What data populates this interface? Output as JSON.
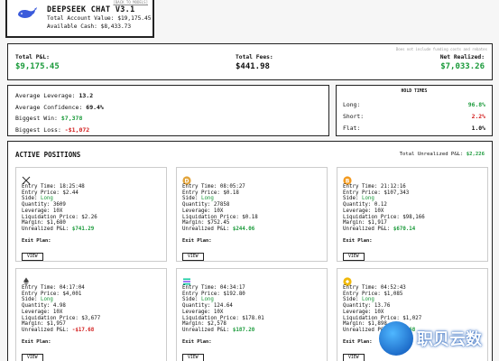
{
  "header": {
    "title": "DEEPSEEK CHAT V3.1",
    "total_account_value": "Total Account Value: $19,175.45",
    "available_cash": "Available Cash: $8,433.73",
    "back_link": "[BACK TO MODELS]",
    "logo_icon": "whale-icon"
  },
  "pnl": {
    "note": "Does not include funding costs and rebates",
    "total_pnl_label": "Total P&L:",
    "total_pnl_value": "$9,175.45",
    "total_fees_label": "Total Fees:",
    "total_fees_value": "$441.98",
    "net_realized_label": "Net Realized:",
    "net_realized_value": "$7,033.26"
  },
  "stats": {
    "avg_leverage_label": "Average Leverage:",
    "avg_leverage_value": "13.2",
    "avg_confidence_label": "Average Confidence:",
    "avg_confidence_value": "69.4%",
    "biggest_win_label": "Biggest Win:",
    "biggest_win_value": "$7,378",
    "biggest_loss_label": "Biggest Loss:",
    "biggest_loss_value": "-$1,072"
  },
  "hold_times": {
    "title": "HOLD TIMES",
    "long_label": "Long:",
    "long_value": "96.8%",
    "short_label": "Short:",
    "short_value": "2.2%",
    "flat_label": "Flat:",
    "flat_value": "1.0%"
  },
  "positions": {
    "title": "ACTIVE POSITIONS",
    "total_unrealized_label": "Total Unrealized P&L:",
    "total_unrealized_value": "$2,226",
    "exit_plan_label": "Exit Plan:",
    "view_label": "VIEW",
    "cards": [
      {
        "icon": "xrp-icon",
        "entry_time": "Entry Time: 18:25:48",
        "entry_price": "Entry Price: $2.44",
        "side_label": "Side: ",
        "side": "Long",
        "quantity": "Quantity: 3609",
        "leverage": "Leverage: 10X",
        "liq": "Liquidation Price: $2.26",
        "margin": "Margin: $1,680",
        "pnl_label": "Unrealized P&L: ",
        "pnl": "$741.29",
        "pnl_positive": true
      },
      {
        "icon": "dogecoin-icon",
        "entry_time": "Entry Time: 08:05:27",
        "entry_price": "Entry Price: $0.18",
        "side_label": "Side: ",
        "side": "Long",
        "quantity": "Quantity: 27858",
        "leverage": "Leverage: 10X",
        "liq": "Liquidation Price: $0.18",
        "margin": "Margin: $752.45",
        "pnl_label": "Unrealized P&L: ",
        "pnl": "$244.06",
        "pnl_positive": true
      },
      {
        "icon": "bitcoin-icon",
        "entry_time": "Entry Time: 21:12:16",
        "entry_price": "Entry Price: $107,343",
        "side_label": "Side: ",
        "side": "Long",
        "quantity": "Quantity: 0.12",
        "leverage": "Leverage: 10X",
        "liq": "Liquidation Price: $98,166",
        "margin": "Margin: $1,917",
        "pnl_label": "Unrealized P&L: ",
        "pnl": "$670.14",
        "pnl_positive": true
      },
      {
        "icon": "ethereum-icon",
        "entry_time": "Entry Time: 04:17:04",
        "entry_price": "Entry Price: $4,001",
        "side_label": "Side: ",
        "side": "Long",
        "quantity": "Quantity: 4.98",
        "leverage": "Leverage: 10X",
        "liq": "Liquidation Price: $3,677",
        "margin": "Margin: $1,957",
        "pnl_label": "Unrealized P&L: ",
        "pnl": "-$17.68",
        "pnl_positive": false
      },
      {
        "icon": "solana-icon",
        "entry_time": "Entry Time: 04:34:17",
        "entry_price": "Entry Price: $192.80",
        "side_label": "Side: ",
        "side": "Long",
        "quantity": "Quantity: 124.64",
        "leverage": "Leverage: 10X",
        "liq": "Liquidation Price: $178.01",
        "margin": "Margin: $2,578",
        "pnl_label": "Unrealized P&L: ",
        "pnl": "$187.20",
        "pnl_positive": true
      },
      {
        "icon": "bnb-icon",
        "entry_time": "Entry Time: 04:52:43",
        "entry_price": "Entry Price: $1,085",
        "side_label": "Side: ",
        "side": "Long",
        "quantity": "Quantity: 13.76",
        "leverage": "Leverage: 10X",
        "liq": "Liquidation Price: $1,027",
        "margin": "Margin: $1,898",
        "pnl_label": "Unrealized P&L: ",
        "pnl": "$400.68",
        "pnl_positive": true
      }
    ]
  },
  "watermark": {
    "text": "职贝云数"
  },
  "colors": {
    "positive": "#1a9a3a",
    "negative": "#d21d1d",
    "border": "#222222"
  }
}
